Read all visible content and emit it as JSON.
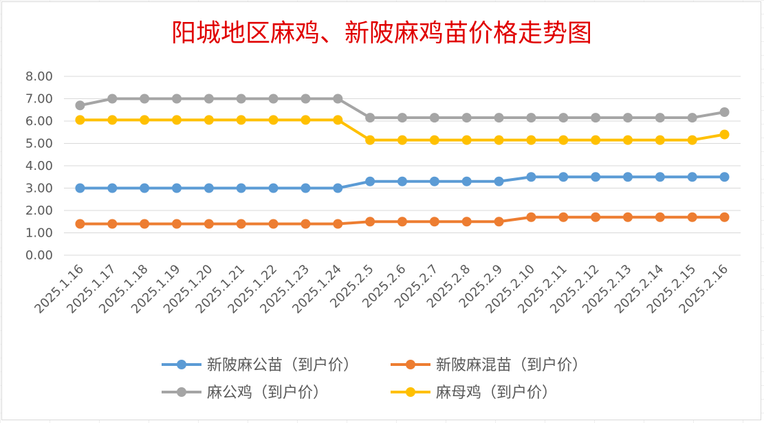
{
  "chart_data": {
    "type": "line",
    "title": "阳城地区麻鸡、新陂麻鸡苗价格走势图",
    "categories": [
      "2025.1.16",
      "2025.1.17",
      "2025.1.18",
      "2025.1.19",
      "2025.1.20",
      "2025.1.21",
      "2025.1.22",
      "2025.1.23",
      "2025.1.24",
      "2025.2.5",
      "2025.2.6",
      "2025.2.7",
      "2025.2.8",
      "2025.2.9",
      "2025.2.10",
      "2025.2.11",
      "2025.2.12",
      "2025.2.13",
      "2025.2.14",
      "2025.2.15",
      "2025.2.16"
    ],
    "ylim": [
      0,
      8
    ],
    "yticks": [
      "0.00",
      "1.00",
      "2.00",
      "3.00",
      "4.00",
      "5.00",
      "6.00",
      "7.00",
      "8.00"
    ],
    "grid": true,
    "legend_position": "bottom",
    "series": [
      {
        "name": "新陂麻公苗（到户价）",
        "color": "#5b9bd5",
        "values": [
          3.0,
          3.0,
          3.0,
          3.0,
          3.0,
          3.0,
          3.0,
          3.0,
          3.0,
          3.3,
          3.3,
          3.3,
          3.3,
          3.3,
          3.5,
          3.5,
          3.5,
          3.5,
          3.5,
          3.5,
          3.5
        ]
      },
      {
        "name": "新陂麻混苗（到户价）",
        "color": "#ed7d31",
        "values": [
          1.4,
          1.4,
          1.4,
          1.4,
          1.4,
          1.4,
          1.4,
          1.4,
          1.4,
          1.5,
          1.5,
          1.5,
          1.5,
          1.5,
          1.7,
          1.7,
          1.7,
          1.7,
          1.7,
          1.7,
          1.7
        ]
      },
      {
        "name": "麻公鸡（到户价）",
        "color": "#a5a5a5",
        "values": [
          6.7,
          7.0,
          7.0,
          7.0,
          7.0,
          7.0,
          7.0,
          7.0,
          7.0,
          6.15,
          6.15,
          6.15,
          6.15,
          6.15,
          6.15,
          6.15,
          6.15,
          6.15,
          6.15,
          6.15,
          6.4
        ]
      },
      {
        "name": "麻母鸡（到户价）",
        "color": "#ffc000",
        "values": [
          6.05,
          6.05,
          6.05,
          6.05,
          6.05,
          6.05,
          6.05,
          6.05,
          6.05,
          5.15,
          5.15,
          5.15,
          5.15,
          5.15,
          5.15,
          5.15,
          5.15,
          5.15,
          5.15,
          5.15,
          5.4
        ]
      }
    ]
  }
}
